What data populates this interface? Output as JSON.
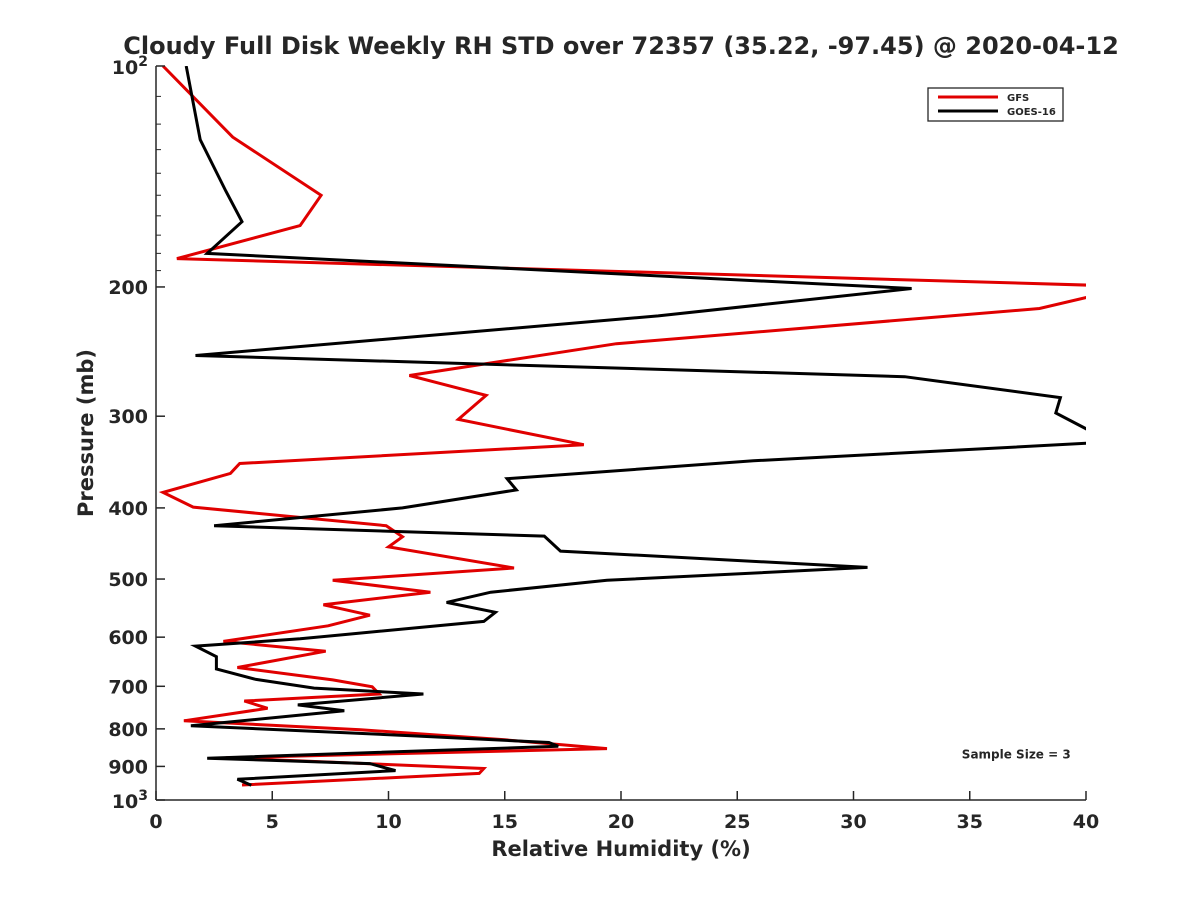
{
  "chart_data": {
    "type": "line",
    "title": "Cloudy Full Disk Weekly RH STD over 72357 (35.22, -97.45) @ 2020-04-12",
    "xlabel": "Relative Humidity (%)",
    "ylabel": "Pressure (mb)",
    "xlim": [
      0,
      40
    ],
    "ylim": [
      100,
      1000
    ],
    "y_scale": "log",
    "y_reversed": true,
    "x_ticks": [
      "0",
      "5",
      "10",
      "15",
      "20",
      "25",
      "30",
      "35",
      "40"
    ],
    "y_ticks": [
      {
        "value": 100,
        "base": "10",
        "exp": "2"
      },
      {
        "value": 200,
        "label": "200"
      },
      {
        "value": 300,
        "label": "300"
      },
      {
        "value": 400,
        "label": "400"
      },
      {
        "value": 500,
        "label": "500"
      },
      {
        "value": 600,
        "label": "600"
      },
      {
        "value": 700,
        "label": "700"
      },
      {
        "value": 800,
        "label": "800"
      },
      {
        "value": 900,
        "label": "900"
      },
      {
        "value": 1000,
        "base": "10",
        "exp": "3"
      }
    ],
    "grid": false,
    "legend_position": "top-right",
    "series": [
      {
        "name": "GFS",
        "color": "#e00000",
        "points": [
          [
            0.3,
            100
          ],
          [
            3.3,
            125
          ],
          [
            7.1,
            150
          ],
          [
            6.2,
            165
          ],
          [
            0.9,
            183
          ],
          [
            40.5,
            199
          ],
          [
            40.5,
            205
          ],
          [
            38.0,
            214
          ],
          [
            19.8,
            239
          ],
          [
            10.9,
            264
          ],
          [
            14.2,
            281
          ],
          [
            13.0,
            303
          ],
          [
            18.4,
            328
          ],
          [
            3.6,
            348
          ],
          [
            3.2,
            359
          ],
          [
            0.3,
            381
          ],
          [
            1.6,
            399
          ],
          [
            9.9,
            423
          ],
          [
            10.6,
            438
          ],
          [
            10.0,
            452
          ],
          [
            15.4,
            483
          ],
          [
            7.6,
            502
          ],
          [
            11.8,
            521
          ],
          [
            7.2,
            542
          ],
          [
            9.2,
            560
          ],
          [
            7.4,
            579
          ],
          [
            2.9,
            608
          ],
          [
            7.3,
            627
          ],
          [
            3.5,
            660
          ],
          [
            7.6,
            686
          ],
          [
            9.3,
            701
          ],
          [
            9.6,
            717
          ],
          [
            3.8,
            733
          ],
          [
            4.8,
            750
          ],
          [
            1.2,
            780
          ],
          [
            8.8,
            802
          ],
          [
            15.0,
            828
          ],
          [
            19.4,
            851
          ],
          [
            3.0,
            876
          ],
          [
            14.1,
            906
          ],
          [
            13.9,
            920
          ],
          [
            3.7,
            954
          ]
        ]
      },
      {
        "name": "GOES-16",
        "color": "#000000",
        "points": [
          [
            1.3,
            100
          ],
          [
            1.9,
            126
          ],
          [
            3.0,
            148
          ],
          [
            3.7,
            163
          ],
          [
            2.2,
            180
          ],
          [
            32.5,
            201
          ],
          [
            21.6,
            219
          ],
          [
            1.7,
            248
          ],
          [
            32.2,
            265
          ],
          [
            38.9,
            283
          ],
          [
            38.7,
            297
          ],
          [
            40.5,
            318
          ],
          [
            40.5,
            326
          ],
          [
            25.7,
            345
          ],
          [
            15.1,
            365
          ],
          [
            15.5,
            378
          ],
          [
            10.6,
            400
          ],
          [
            2.5,
            423
          ],
          [
            16.7,
            437
          ],
          [
            17.4,
            458
          ],
          [
            30.6,
            482
          ],
          [
            19.4,
            502
          ],
          [
            14.4,
            521
          ],
          [
            12.5,
            538
          ],
          [
            14.6,
            555
          ],
          [
            14.1,
            571
          ],
          [
            6.2,
            603
          ],
          [
            1.7,
            617
          ],
          [
            2.6,
            638
          ],
          [
            2.6,
            663
          ],
          [
            4.3,
            685
          ],
          [
            6.8,
            704
          ],
          [
            11.5,
            717
          ],
          [
            6.1,
            742
          ],
          [
            8.1,
            756
          ],
          [
            1.5,
            792
          ],
          [
            11.2,
            818
          ],
          [
            16.9,
            835
          ],
          [
            17.3,
            845
          ],
          [
            2.2,
            877
          ],
          [
            9.2,
            892
          ],
          [
            10.3,
            912
          ],
          [
            3.5,
            937
          ],
          [
            4.1,
            955
          ]
        ]
      }
    ],
    "annotations": [
      {
        "text": "Sample Size = 3",
        "x": 37.0,
        "y": 878
      }
    ]
  }
}
